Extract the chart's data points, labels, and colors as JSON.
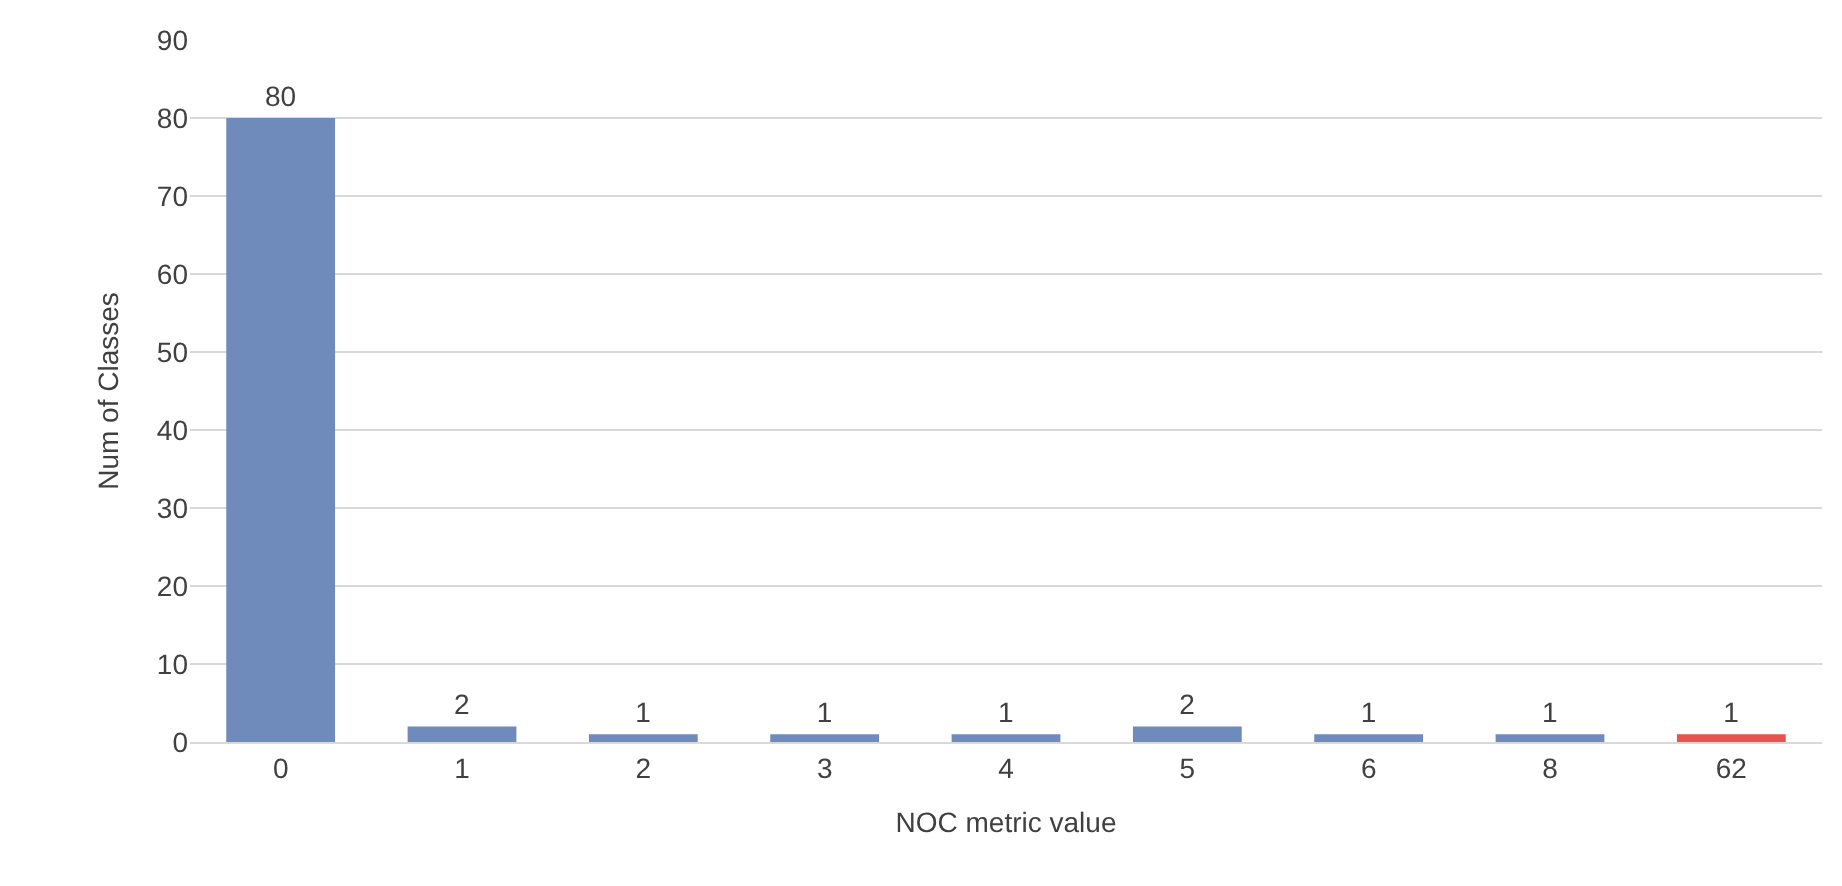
{
  "chart_data": {
    "type": "bar",
    "xlabel": "NOC metric value",
    "ylabel": "Num of Classes",
    "categories": [
      "0",
      "1",
      "2",
      "3",
      "4",
      "5",
      "6",
      "8",
      "62"
    ],
    "values": [
      80,
      2,
      1,
      1,
      1,
      2,
      1,
      1,
      1
    ],
    "colors": [
      "#6e8bbb",
      "#6e8bbb",
      "#6e8bbb",
      "#6e8bbb",
      "#6e8bbb",
      "#6e8bbb",
      "#6e8bbb",
      "#6e8bbb",
      "#e8534f"
    ],
    "ylim": [
      0,
      90
    ],
    "yticks": [
      0,
      10,
      20,
      30,
      40,
      50,
      60,
      70,
      80,
      90
    ],
    "grid": "y",
    "data_labels": true,
    "legend": false
  }
}
